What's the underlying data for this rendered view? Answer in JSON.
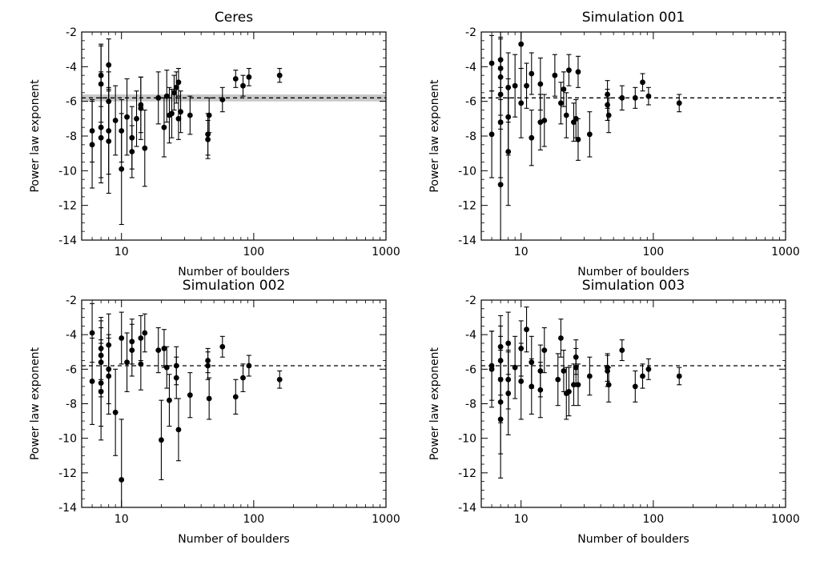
{
  "figure": {
    "background": "#ffffff",
    "ink": "#000000",
    "band_color": "#c8c8c8"
  },
  "chart_data": [
    {
      "type": "scatter",
      "title": "Ceres",
      "xlabel": "Number of boulders",
      "ylabel": "Power law exponent",
      "xscale": "log",
      "xlim": [
        5,
        1000
      ],
      "ylim": [
        -14,
        -2
      ],
      "xticks": [
        10,
        100,
        1000
      ],
      "xtick_labels": [
        "10",
        "100",
        "1000"
      ],
      "yticks": [
        -14,
        -12,
        -10,
        -8,
        -6,
        -4,
        -2
      ],
      "ytick_labels": [
        "-14",
        "-12",
        "-10",
        "-8",
        "-6",
        "-4",
        "-2"
      ],
      "reference_line": -5.8,
      "reference_band": [
        -6.0,
        -5.6
      ],
      "grid": false,
      "points": [
        {
          "x": 6,
          "y": -8.5,
          "yerr": 2.5
        },
        {
          "x": 6,
          "y": -7.7,
          "yerr": 1.8
        },
        {
          "x": 7,
          "y": -7.5,
          "yerr": 3.2
        },
        {
          "x": 7,
          "y": -5.0,
          "yerr": 2.2
        },
        {
          "x": 7,
          "y": -4.5,
          "yerr": 1.8
        },
        {
          "x": 7,
          "y": -8.1,
          "yerr": 2.3
        },
        {
          "x": 8,
          "y": -3.9,
          "yerr": 1.5
        },
        {
          "x": 8,
          "y": -6.0,
          "yerr": 1.7
        },
        {
          "x": 8,
          "y": -7.7,
          "yerr": 2.5
        },
        {
          "x": 8,
          "y": -8.3,
          "yerr": 3.0
        },
        {
          "x": 9,
          "y": -7.1,
          "yerr": 2.0
        },
        {
          "x": 10,
          "y": -9.9,
          "yerr": 3.2
        },
        {
          "x": 10,
          "y": -7.7,
          "yerr": 1.8
        },
        {
          "x": 11,
          "y": -6.9,
          "yerr": 2.2
        },
        {
          "x": 12,
          "y": -8.1,
          "yerr": 1.8
        },
        {
          "x": 12,
          "y": -8.9,
          "yerr": 1.5
        },
        {
          "x": 13,
          "y": -7.0,
          "yerr": 1.6
        },
        {
          "x": 14,
          "y": -6.4,
          "yerr": 1.8
        },
        {
          "x": 14,
          "y": -6.2,
          "yerr": 1.6
        },
        {
          "x": 15,
          "y": -8.7,
          "yerr": 2.2
        },
        {
          "x": 19,
          "y": -5.8,
          "yerr": 1.5
        },
        {
          "x": 21,
          "y": -7.5,
          "yerr": 1.7
        },
        {
          "x": 22,
          "y": -5.7,
          "yerr": 1.5
        },
        {
          "x": 23,
          "y": -6.8,
          "yerr": 1.6
        },
        {
          "x": 24,
          "y": -6.7,
          "yerr": 1.4
        },
        {
          "x": 25,
          "y": -5.5,
          "yerr": 1.0
        },
        {
          "x": 26,
          "y": -5.2,
          "yerr": 0.9
        },
        {
          "x": 27,
          "y": -4.9,
          "yerr": 0.8
        },
        {
          "x": 27,
          "y": -7.0,
          "yerr": 1.2
        },
        {
          "x": 28,
          "y": -6.6,
          "yerr": 1.2
        },
        {
          "x": 33,
          "y": -6.8,
          "yerr": 1.1
        },
        {
          "x": 45,
          "y": -7.9,
          "yerr": 1.2
        },
        {
          "x": 45,
          "y": -8.2,
          "yerr": 1.1
        },
        {
          "x": 46,
          "y": -6.8,
          "yerr": 1.0
        },
        {
          "x": 58,
          "y": -5.9,
          "yerr": 0.7
        },
        {
          "x": 73,
          "y": -4.7,
          "yerr": 0.5
        },
        {
          "x": 83,
          "y": -5.1,
          "yerr": 0.6
        },
        {
          "x": 92,
          "y": -4.6,
          "yerr": 0.5
        },
        {
          "x": 157,
          "y": -4.5,
          "yerr": 0.4
        }
      ]
    },
    {
      "type": "scatter",
      "title": "Simulation 001",
      "xlabel": "Number of boulders",
      "ylabel": "Power law exponent",
      "xscale": "log",
      "xlim": [
        5,
        1000
      ],
      "ylim": [
        -14,
        -2
      ],
      "xticks": [
        10,
        100,
        1000
      ],
      "xtick_labels": [
        "10",
        "100",
        "1000"
      ],
      "yticks": [
        -14,
        -12,
        -10,
        -8,
        -6,
        -4,
        -2
      ],
      "ytick_labels": [
        "-14",
        "-12",
        "-10",
        "-8",
        "-6",
        "-4",
        "-2"
      ],
      "reference_line": -5.8,
      "grid": false,
      "points": [
        {
          "x": 6,
          "y": -3.8,
          "yerr": 1.6
        },
        {
          "x": 6,
          "y": -7.9,
          "yerr": 2.5
        },
        {
          "x": 7,
          "y": -3.6,
          "yerr": 1.6
        },
        {
          "x": 7,
          "y": -4.1,
          "yerr": 1.8
        },
        {
          "x": 7,
          "y": -4.6,
          "yerr": 2.2
        },
        {
          "x": 7,
          "y": -5.6,
          "yerr": 2.0
        },
        {
          "x": 7,
          "y": -7.2,
          "yerr": 3.2
        },
        {
          "x": 7,
          "y": -10.8,
          "yerr": 3.5
        },
        {
          "x": 8,
          "y": -5.2,
          "yerr": 2.0
        },
        {
          "x": 8,
          "y": -6.9,
          "yerr": 2.2
        },
        {
          "x": 8,
          "y": -8.9,
          "yerr": 3.1
        },
        {
          "x": 9,
          "y": -5.1,
          "yerr": 1.8
        },
        {
          "x": 10,
          "y": -2.7,
          "yerr": 1.4
        },
        {
          "x": 10,
          "y": -6.1,
          "yerr": 2.0
        },
        {
          "x": 11,
          "y": -5.1,
          "yerr": 1.3
        },
        {
          "x": 12,
          "y": -4.4,
          "yerr": 1.2
        },
        {
          "x": 12,
          "y": -8.1,
          "yerr": 1.6
        },
        {
          "x": 14,
          "y": -5.0,
          "yerr": 1.5
        },
        {
          "x": 14,
          "y": -7.2,
          "yerr": 1.6
        },
        {
          "x": 15,
          "y": -7.1,
          "yerr": 1.5
        },
        {
          "x": 18,
          "y": -4.5,
          "yerr": 1.2
        },
        {
          "x": 20,
          "y": -6.1,
          "yerr": 1.2
        },
        {
          "x": 21,
          "y": -5.3,
          "yerr": 1.0
        },
        {
          "x": 22,
          "y": -6.8,
          "yerr": 1.3
        },
        {
          "x": 23,
          "y": -4.2,
          "yerr": 0.9
        },
        {
          "x": 25,
          "y": -7.2,
          "yerr": 1.1
        },
        {
          "x": 26,
          "y": -7.0,
          "yerr": 1.1
        },
        {
          "x": 27,
          "y": -4.3,
          "yerr": 0.9
        },
        {
          "x": 27,
          "y": -8.2,
          "yerr": 1.2
        },
        {
          "x": 33,
          "y": -7.9,
          "yerr": 1.3
        },
        {
          "x": 45,
          "y": -5.6,
          "yerr": 0.8
        },
        {
          "x": 45,
          "y": -6.2,
          "yerr": 0.9
        },
        {
          "x": 46,
          "y": -6.8,
          "yerr": 1.0
        },
        {
          "x": 58,
          "y": -5.8,
          "yerr": 0.7
        },
        {
          "x": 73,
          "y": -5.8,
          "yerr": 0.6
        },
        {
          "x": 83,
          "y": -4.9,
          "yerr": 0.5
        },
        {
          "x": 92,
          "y": -5.7,
          "yerr": 0.5
        },
        {
          "x": 157,
          "y": -6.1,
          "yerr": 0.5
        }
      ]
    },
    {
      "type": "scatter",
      "title": "Simulation 002",
      "xlabel": "Number of boulders",
      "ylabel": "Power law exponent",
      "xscale": "log",
      "xlim": [
        5,
        1000
      ],
      "ylim": [
        -14,
        -2
      ],
      "xticks": [
        10,
        100,
        1000
      ],
      "xtick_labels": [
        "10",
        "100",
        "1000"
      ],
      "yticks": [
        -14,
        -12,
        -10,
        -8,
        -6,
        -4,
        -2
      ],
      "ytick_labels": [
        "-14",
        "-12",
        "-10",
        "-8",
        "-6",
        "-4",
        "-2"
      ],
      "reference_line": -5.8,
      "grid": false,
      "points": [
        {
          "x": 6,
          "y": -3.9,
          "yerr": 1.7
        },
        {
          "x": 6,
          "y": -6.7,
          "yerr": 2.5
        },
        {
          "x": 7,
          "y": -4.8,
          "yerr": 1.8
        },
        {
          "x": 7,
          "y": -5.2,
          "yerr": 2.0
        },
        {
          "x": 7,
          "y": -5.6,
          "yerr": 2.0
        },
        {
          "x": 7,
          "y": -6.8,
          "yerr": 2.5
        },
        {
          "x": 7,
          "y": -7.3,
          "yerr": 2.8
        },
        {
          "x": 8,
          "y": -4.6,
          "yerr": 1.8
        },
        {
          "x": 8,
          "y": -6.0,
          "yerr": 2.0
        },
        {
          "x": 8,
          "y": -6.4,
          "yerr": 2.2
        },
        {
          "x": 9,
          "y": -8.5,
          "yerr": 2.5
        },
        {
          "x": 10,
          "y": -4.2,
          "yerr": 1.5
        },
        {
          "x": 10,
          "y": -12.4,
          "yerr": 3.5
        },
        {
          "x": 11,
          "y": -5.6,
          "yerr": 1.7
        },
        {
          "x": 12,
          "y": -4.4,
          "yerr": 1.3
        },
        {
          "x": 12,
          "y": -4.9,
          "yerr": 1.5
        },
        {
          "x": 14,
          "y": -4.2,
          "yerr": 1.3
        },
        {
          "x": 14,
          "y": -5.7,
          "yerr": 1.5
        },
        {
          "x": 15,
          "y": -3.9,
          "yerr": 1.1
        },
        {
          "x": 19,
          "y": -4.9,
          "yerr": 1.3
        },
        {
          "x": 20,
          "y": -10.1,
          "yerr": 2.3
        },
        {
          "x": 21,
          "y": -4.8,
          "yerr": 1.1
        },
        {
          "x": 22,
          "y": -5.9,
          "yerr": 1.2
        },
        {
          "x": 23,
          "y": -7.8,
          "yerr": 1.5
        },
        {
          "x": 26,
          "y": -5.8,
          "yerr": 1.1
        },
        {
          "x": 26,
          "y": -6.5,
          "yerr": 1.2
        },
        {
          "x": 27,
          "y": -9.5,
          "yerr": 1.8
        },
        {
          "x": 33,
          "y": -7.5,
          "yerr": 1.3
        },
        {
          "x": 45,
          "y": -5.5,
          "yerr": 0.7
        },
        {
          "x": 45,
          "y": -5.8,
          "yerr": 0.8
        },
        {
          "x": 46,
          "y": -7.7,
          "yerr": 1.2
        },
        {
          "x": 58,
          "y": -4.7,
          "yerr": 0.6
        },
        {
          "x": 73,
          "y": -7.6,
          "yerr": 1.0
        },
        {
          "x": 83,
          "y": -6.5,
          "yerr": 0.8
        },
        {
          "x": 92,
          "y": -5.8,
          "yerr": 0.6
        },
        {
          "x": 157,
          "y": -6.6,
          "yerr": 0.5
        }
      ]
    },
    {
      "type": "scatter",
      "title": "Simulation 003",
      "xlabel": "Number of boulders",
      "ylabel": "Power law exponent",
      "xscale": "log",
      "xlim": [
        5,
        1000
      ],
      "ylim": [
        -14,
        -2
      ],
      "xticks": [
        10,
        100,
        1000
      ],
      "xtick_labels": [
        "10",
        "100",
        "1000"
      ],
      "yticks": [
        -14,
        -12,
        -10,
        -8,
        -6,
        -4,
        -2
      ],
      "ytick_labels": [
        "-14",
        "-12",
        "-10",
        "-8",
        "-6",
        "-4",
        "-2"
      ],
      "reference_line": -5.8,
      "grid": false,
      "points": [
        {
          "x": 6,
          "y": -5.8,
          "yerr": 2.0
        },
        {
          "x": 6,
          "y": -6.0,
          "yerr": 2.2
        },
        {
          "x": 7,
          "y": -4.7,
          "yerr": 1.8
        },
        {
          "x": 7,
          "y": -5.5,
          "yerr": 2.0
        },
        {
          "x": 7,
          "y": -6.6,
          "yerr": 2.5
        },
        {
          "x": 7,
          "y": -7.9,
          "yerr": 3.0
        },
        {
          "x": 7,
          "y": -8.9,
          "yerr": 3.4
        },
        {
          "x": 8,
          "y": -4.5,
          "yerr": 1.8
        },
        {
          "x": 8,
          "y": -6.6,
          "yerr": 1.7
        },
        {
          "x": 8,
          "y": -7.4,
          "yerr": 2.4
        },
        {
          "x": 9,
          "y": -5.9,
          "yerr": 1.8
        },
        {
          "x": 10,
          "y": -4.8,
          "yerr": 1.6
        },
        {
          "x": 10,
          "y": -6.7,
          "yerr": 2.2
        },
        {
          "x": 11,
          "y": -3.7,
          "yerr": 1.3
        },
        {
          "x": 12,
          "y": -5.6,
          "yerr": 1.5
        },
        {
          "x": 12,
          "y": -7.0,
          "yerr": 1.6
        },
        {
          "x": 14,
          "y": -6.1,
          "yerr": 1.5
        },
        {
          "x": 14,
          "y": -7.2,
          "yerr": 1.6
        },
        {
          "x": 15,
          "y": -4.9,
          "yerr": 1.3
        },
        {
          "x": 19,
          "y": -6.6,
          "yerr": 1.5
        },
        {
          "x": 20,
          "y": -4.2,
          "yerr": 1.1
        },
        {
          "x": 21,
          "y": -6.1,
          "yerr": 1.2
        },
        {
          "x": 22,
          "y": -7.4,
          "yerr": 1.5
        },
        {
          "x": 23,
          "y": -7.3,
          "yerr": 1.4
        },
        {
          "x": 25,
          "y": -6.9,
          "yerr": 1.2
        },
        {
          "x": 26,
          "y": -5.3,
          "yerr": 1.0
        },
        {
          "x": 26,
          "y": -5.9,
          "yerr": 1.1
        },
        {
          "x": 27,
          "y": -6.9,
          "yerr": 1.2
        },
        {
          "x": 33,
          "y": -6.4,
          "yerr": 1.1
        },
        {
          "x": 45,
          "y": -5.9,
          "yerr": 0.8
        },
        {
          "x": 45,
          "y": -6.1,
          "yerr": 0.9
        },
        {
          "x": 46,
          "y": -6.9,
          "yerr": 1.0
        },
        {
          "x": 58,
          "y": -4.9,
          "yerr": 0.6
        },
        {
          "x": 73,
          "y": -7.0,
          "yerr": 0.9
        },
        {
          "x": 83,
          "y": -6.4,
          "yerr": 0.7
        },
        {
          "x": 92,
          "y": -6.0,
          "yerr": 0.6
        },
        {
          "x": 157,
          "y": -6.4,
          "yerr": 0.5
        }
      ]
    }
  ]
}
